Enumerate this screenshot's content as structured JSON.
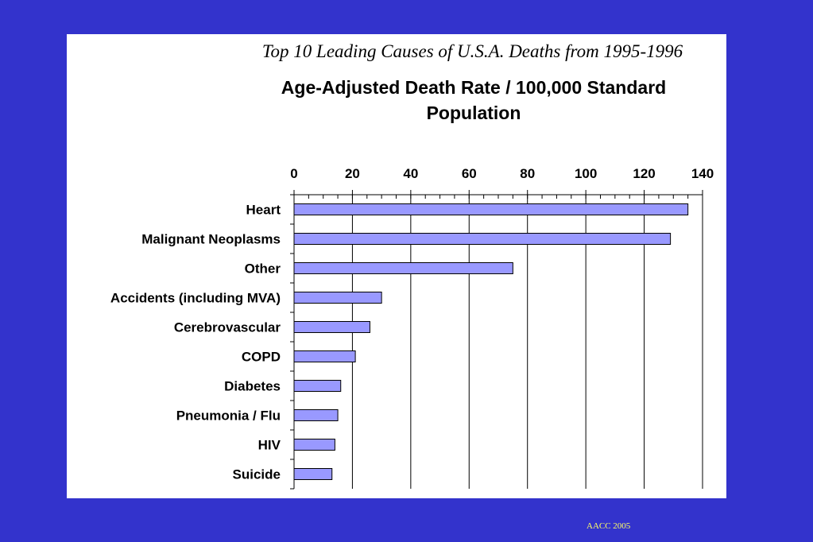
{
  "slide": {
    "title": "Top 10 Leading Causes of U.S.A. Deaths from 1995-1996",
    "footer": "AACC 2005",
    "background_color": "#3333cc"
  },
  "chart_data": {
    "type": "bar",
    "orientation": "horizontal",
    "title": "Age-Adjusted Death Rate / 100,000 Standard Population",
    "categories": [
      "Heart",
      "Malignant Neoplasms",
      "Other",
      "Accidents (including MVA)",
      "Cerebrovascular",
      "COPD",
      "Diabetes",
      "Pneumonia / Flu",
      "HIV",
      "Suicide"
    ],
    "values": [
      135,
      129,
      75,
      30,
      26,
      21,
      16,
      15,
      14,
      13
    ],
    "xlim": [
      0,
      140
    ],
    "x_ticks": [
      0,
      20,
      40,
      60,
      80,
      100,
      120,
      140
    ],
    "x_axis_position": "top",
    "grid": true,
    "bar_color": "#9999ff",
    "bar_edge_color": "#000000"
  }
}
